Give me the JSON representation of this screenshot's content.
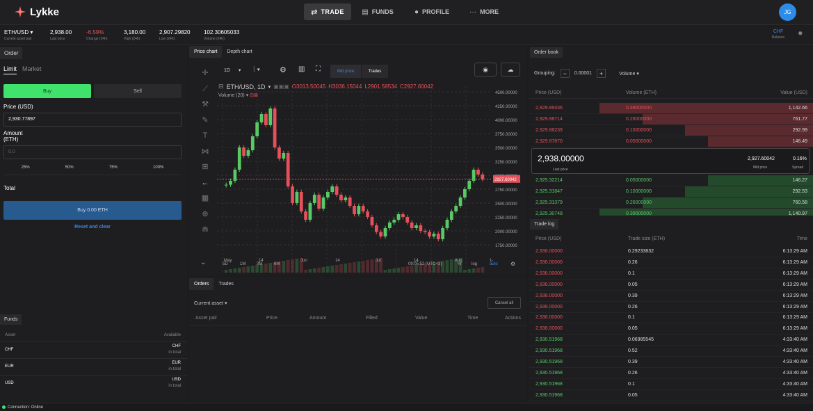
{
  "brand": "Lykke",
  "nav": {
    "trade": "TRADE",
    "funds": "FUNDS",
    "profile": "PROFILE",
    "more": "MORE"
  },
  "user": {
    "initials": "JG"
  },
  "ticker": {
    "pair": "ETH/USD",
    "pair_sub": "Current asset pair",
    "last_price": "2,938.00",
    "last_price_label": "Last price",
    "change": "-6.59%",
    "change_label": "Change (24h)",
    "high": "3,180.00",
    "high_label": "High (24h)",
    "low": "2,907.29820",
    "low_label": "Low (24h)",
    "volume": "102.30605033",
    "volume_label": "Volume (24h)",
    "balance_value": "CHF",
    "balance_label": "Balance"
  },
  "order": {
    "title": "Order",
    "tab_limit": "Limit",
    "tab_market": "Market",
    "buy": "Buy",
    "sell": "Sell",
    "price_label": "Price (USD)",
    "price_value": "2,930.77897",
    "amount_label_1": "Amount",
    "amount_label_2": "(ETH)",
    "amount_placeholder": "0.0",
    "pcts": [
      "25%",
      "50%",
      "75%",
      "100%"
    ],
    "total_label": "Total",
    "submit": "Buy 0.00 ETH",
    "reset": "Reset and clear"
  },
  "funds": {
    "title": "Funds",
    "col_asset": "Asset",
    "col_available": "Available",
    "rows": [
      {
        "asset": "CHF",
        "code": "CHF",
        "sub": "in total"
      },
      {
        "asset": "EUR",
        "code": "EUR",
        "sub": "in total"
      },
      {
        "asset": "USD",
        "code": "USD",
        "sub": "in total"
      }
    ]
  },
  "status": {
    "text": "Connection: Online"
  },
  "chart": {
    "tab_price": "Price chart",
    "tab_depth": "Depth chart",
    "interval": "1D",
    "mid_price": "Mid price",
    "trades": "Trades",
    "symbol": "ETH/USD, 1D",
    "o": "O3013.50045",
    "h": "H3036.15044",
    "l": "L2901.58534",
    "c": "C2927.60042",
    "volume_label": "Volume (20)",
    "current": "2927.60042",
    "y_ticks": [
      "4500.00000",
      "4250.00000",
      "4000.00000",
      "3750.00000",
      "3500.00000",
      "3250.00000",
      "3000.00000",
      "2750.00000",
      "2500.00000",
      "2250.00000",
      "2000.00000",
      "1750.00000"
    ],
    "x_ticks": [
      "May",
      "14",
      "Jun",
      "14",
      "Jul",
      "14",
      "Aug",
      "1-"
    ],
    "ranges": [
      "5D",
      "1M",
      "3M",
      "6M"
    ],
    "time": "09:05:52 (UTC+3)",
    "pct": "%",
    "log": "log",
    "auto": "auto"
  },
  "chart_data": {
    "type": "candlestick",
    "ylim": [
      1600,
      4600
    ],
    "candles": [
      [
        2820,
        2830
      ],
      [
        2830,
        2900
      ],
      [
        2900,
        3100
      ],
      [
        3100,
        3500
      ],
      [
        3500,
        3350
      ],
      [
        3350,
        3450
      ],
      [
        3450,
        3700
      ],
      [
        3700,
        3950
      ],
      [
        3950,
        4100
      ],
      [
        4100,
        3900
      ],
      [
        3900,
        4200
      ],
      [
        4200,
        3500
      ],
      [
        3500,
        3300
      ],
      [
        3300,
        3400
      ],
      [
        3400,
        2800
      ],
      [
        2800,
        2500
      ],
      [
        2500,
        2700
      ],
      [
        2700,
        2350
      ],
      [
        2350,
        2200
      ],
      [
        2200,
        2500
      ],
      [
        2500,
        2650
      ],
      [
        2650,
        2400
      ],
      [
        2400,
        2600
      ],
      [
        2600,
        2700
      ],
      [
        2700,
        2800
      ],
      [
        2800,
        2650
      ],
      [
        2650,
        2550
      ],
      [
        2550,
        2600
      ],
      [
        2600,
        2450
      ],
      [
        2450,
        2300
      ],
      [
        2300,
        2450
      ],
      [
        2450,
        2350
      ],
      [
        2350,
        2250
      ],
      [
        2250,
        2100
      ],
      [
        2100,
        1980
      ],
      [
        1980,
        1900
      ],
      [
        1900,
        2050
      ],
      [
        2050,
        2150
      ],
      [
        2150,
        2200
      ],
      [
        2200,
        2300
      ],
      [
        2300,
        2250
      ],
      [
        2250,
        2150
      ],
      [
        2150,
        2050
      ],
      [
        2050,
        2100
      ],
      [
        2100,
        2000
      ],
      [
        2000,
        1980
      ],
      [
        1980,
        1900
      ],
      [
        1900,
        1950
      ],
      [
        1950,
        1850
      ],
      [
        1850,
        2050
      ],
      [
        2050,
        2200
      ],
      [
        2200,
        2350
      ],
      [
        2350,
        2450
      ],
      [
        2450,
        2600
      ],
      [
        2600,
        2750
      ],
      [
        2750,
        2900
      ],
      [
        2900,
        3100
      ],
      [
        3100,
        3013
      ],
      [
        3013,
        2927
      ]
    ]
  },
  "orders": {
    "tab_orders": "Orders",
    "tab_trades": "Trades",
    "filter": "Current asset",
    "cancel_all": "Cancel all",
    "cols": [
      "Asset pair",
      "Price",
      "Amount",
      "Filled",
      "Value",
      "Time",
      "Actions"
    ]
  },
  "orderbook": {
    "title": "Order book",
    "grouping_label": "Grouping:",
    "grouping_value": "0.00001",
    "volume_toggle": "Volume",
    "col_price": "Price (USD)",
    "col_volume": "Volume (ETH)",
    "col_value": "Value (USD)",
    "asks": [
      {
        "price": "2,929.89336",
        "vol": "0.39000000",
        "value": "1,142.66",
        "depth": 0.75
      },
      {
        "price": "2,929.88714",
        "vol": "0.26000000",
        "value": "761.77",
        "depth": 0.6
      },
      {
        "price": "2,929.88239",
        "vol": "0.10000000",
        "value": "292.99",
        "depth": 0.45
      },
      {
        "price": "2,929.87870",
        "vol": "0.05000000",
        "value": "146.49",
        "depth": 0.37
      }
    ],
    "last_price": "2,938.00000",
    "last_price_label": "Last price",
    "mid_price": "2,927.60042",
    "mid_label": "Mid price",
    "spread": "0.16%",
    "spread_label": "Spread",
    "bids": [
      {
        "price": "2,925.32214",
        "vol": "0.05000000",
        "value": "146.27",
        "depth": 0.37
      },
      {
        "price": "2,925.31847",
        "vol": "0.10000000",
        "value": "292.53",
        "depth": 0.45
      },
      {
        "price": "2,925.31379",
        "vol": "0.26000000",
        "value": "760.58",
        "depth": 0.6
      },
      {
        "price": "2,925.30748",
        "vol": "0.39000000",
        "value": "1,140.97",
        "depth": 0.75
      }
    ]
  },
  "tradelog": {
    "title": "Trade log",
    "col_price": "Price (USD)",
    "col_size": "Trade size (ETH)",
    "col_time": "Time",
    "rows": [
      {
        "p": "2,938.00000",
        "s": "0.29233832",
        "t": "6:13:29 AM",
        "side": "sell"
      },
      {
        "p": "2,938.00000",
        "s": "0.26",
        "t": "6:13:29 AM",
        "side": "sell"
      },
      {
        "p": "2,938.00000",
        "s": "0.1",
        "t": "6:13:29 AM",
        "side": "sell"
      },
      {
        "p": "2,938.00000",
        "s": "0.05",
        "t": "6:13:29 AM",
        "side": "sell"
      },
      {
        "p": "2,938.00000",
        "s": "0.39",
        "t": "6:13:29 AM",
        "side": "sell"
      },
      {
        "p": "2,938.00000",
        "s": "0.26",
        "t": "6:13:29 AM",
        "side": "sell"
      },
      {
        "p": "2,938.00000",
        "s": "0.1",
        "t": "6:13:29 AM",
        "side": "sell"
      },
      {
        "p": "2,938.00000",
        "s": "0.05",
        "t": "6:13:29 AM",
        "side": "sell"
      },
      {
        "p": "2,930.51968",
        "s": "0.06985545",
        "t": "4:33:40 AM",
        "side": "buy"
      },
      {
        "p": "2,930.51968",
        "s": "0.52",
        "t": "4:33:40 AM",
        "side": "buy"
      },
      {
        "p": "2,930.51968",
        "s": "0.39",
        "t": "4:33:40 AM",
        "side": "buy"
      },
      {
        "p": "2,930.51968",
        "s": "0.26",
        "t": "4:33:40 AM",
        "side": "buy"
      },
      {
        "p": "2,930.51968",
        "s": "0.1",
        "t": "4:33:40 AM",
        "side": "buy"
      },
      {
        "p": "2,930.51968",
        "s": "0.05",
        "t": "4:33:40 AM",
        "side": "buy"
      }
    ]
  },
  "colors": {
    "up": "#58c964",
    "down": "#e6505a",
    "accent": "#3b87e0",
    "buy": "#3fe26a"
  }
}
